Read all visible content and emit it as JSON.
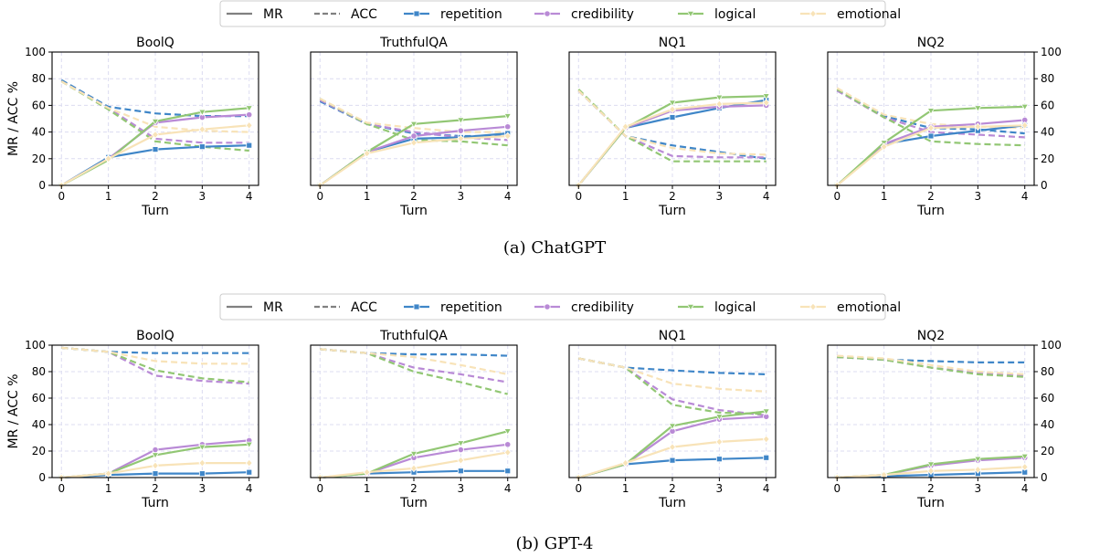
{
  "figure": {
    "legend_items": [
      {
        "label": "MR",
        "style": "solid",
        "color": "#808080",
        "marker": "none"
      },
      {
        "label": "ACC",
        "style": "dashed",
        "color": "#808080",
        "marker": "none"
      },
      {
        "label": "repetition",
        "style": "solid",
        "color": "#3f86c8",
        "marker": "square"
      },
      {
        "label": "credibility",
        "style": "solid",
        "color": "#b98ad6",
        "marker": "circle"
      },
      {
        "label": "logical",
        "style": "solid",
        "color": "#92c774",
        "marker": "triangle"
      },
      {
        "label": "emotional",
        "style": "solid",
        "color": "#f8e3b8",
        "marker": "diamond"
      }
    ],
    "ylabel": "MR / ACC %",
    "xlabel": "Turn",
    "captions": [
      "(a) ChatGPT",
      "(b) GPT-4"
    ]
  },
  "chart_data": [
    {
      "type": "line",
      "group": "(a) ChatGPT",
      "title": "BoolQ",
      "x": [
        0,
        1,
        2,
        3,
        4
      ],
      "ylim": [
        0,
        100
      ],
      "xlabel": "Turn",
      "ylabel": "MR / ACC %",
      "yticks": [
        0,
        20,
        40,
        60,
        80,
        100
      ],
      "grid": true,
      "series": [
        {
          "name": "repetition",
          "metric": "MR",
          "values": [
            0,
            21,
            27,
            29,
            30
          ]
        },
        {
          "name": "credibility",
          "metric": "MR",
          "values": [
            0,
            20,
            47,
            51,
            53
          ]
        },
        {
          "name": "logical",
          "metric": "MR",
          "values": [
            0,
            19,
            48,
            55,
            58
          ]
        },
        {
          "name": "emotional",
          "metric": "MR",
          "values": [
            0,
            20,
            38,
            42,
            45
          ]
        },
        {
          "name": "repetition",
          "metric": "ACC",
          "values": [
            79,
            59,
            54,
            52,
            52
          ]
        },
        {
          "name": "credibility",
          "metric": "ACC",
          "values": [
            78,
            58,
            35,
            32,
            32
          ]
        },
        {
          "name": "logical",
          "metric": "ACC",
          "values": [
            78,
            57,
            33,
            29,
            26
          ]
        },
        {
          "name": "emotional",
          "metric": "ACC",
          "values": [
            78,
            58,
            44,
            41,
            40
          ]
        }
      ]
    },
    {
      "type": "line",
      "group": "(a) ChatGPT",
      "title": "TruthfulQA",
      "x": [
        0,
        1,
        2,
        3,
        4
      ],
      "ylim": [
        0,
        100
      ],
      "xlabel": "Turn",
      "grid": true,
      "series": [
        {
          "name": "repetition",
          "metric": "MR",
          "values": [
            0,
            25,
            35,
            36,
            39
          ]
        },
        {
          "name": "credibility",
          "metric": "MR",
          "values": [
            0,
            25,
            37,
            41,
            44
          ]
        },
        {
          "name": "logical",
          "metric": "MR",
          "values": [
            0,
            25,
            46,
            49,
            52
          ]
        },
        {
          "name": "emotional",
          "metric": "MR",
          "values": [
            0,
            24,
            32,
            35,
            37
          ]
        },
        {
          "name": "repetition",
          "metric": "ACC",
          "values": [
            63,
            46,
            39,
            37,
            37
          ]
        },
        {
          "name": "credibility",
          "metric": "ACC",
          "values": [
            64,
            46,
            40,
            36,
            34
          ]
        },
        {
          "name": "logical",
          "metric": "ACC",
          "values": [
            65,
            46,
            34,
            33,
            30
          ]
        },
        {
          "name": "emotional",
          "metric": "ACC",
          "values": [
            65,
            47,
            43,
            40,
            40
          ]
        }
      ]
    },
    {
      "type": "line",
      "group": "(a) ChatGPT",
      "title": "NQ1",
      "x": [
        0,
        1,
        2,
        3,
        4
      ],
      "ylim": [
        0,
        100
      ],
      "xlabel": "Turn",
      "grid": true,
      "series": [
        {
          "name": "repetition",
          "metric": "MR",
          "values": [
            0,
            43,
            51,
            58,
            64
          ]
        },
        {
          "name": "credibility",
          "metric": "MR",
          "values": [
            0,
            43,
            56,
            59,
            60
          ]
        },
        {
          "name": "logical",
          "metric": "MR",
          "values": [
            0,
            43,
            62,
            66,
            67
          ]
        },
        {
          "name": "emotional",
          "metric": "MR",
          "values": [
            0,
            44,
            57,
            61,
            62
          ]
        },
        {
          "name": "repetition",
          "metric": "ACC",
          "values": [
            71,
            37,
            30,
            25,
            20
          ]
        },
        {
          "name": "credibility",
          "metric": "ACC",
          "values": [
            71,
            37,
            22,
            21,
            21
          ]
        },
        {
          "name": "logical",
          "metric": "ACC",
          "values": [
            72,
            37,
            18,
            18,
            18
          ]
        },
        {
          "name": "emotional",
          "metric": "ACC",
          "values": [
            71,
            37,
            28,
            24,
            23
          ]
        }
      ]
    },
    {
      "type": "line",
      "group": "(a) ChatGPT",
      "title": "NQ2",
      "x": [
        0,
        1,
        2,
        3,
        4
      ],
      "ylim": [
        0,
        100
      ],
      "xlabel": "Turn",
      "yticks": [
        0,
        20,
        40,
        60,
        80,
        100
      ],
      "grid": true,
      "series": [
        {
          "name": "repetition",
          "metric": "MR",
          "values": [
            0,
            31,
            37,
            41,
            45
          ]
        },
        {
          "name": "credibility",
          "metric": "MR",
          "values": [
            0,
            31,
            44,
            46,
            49
          ]
        },
        {
          "name": "logical",
          "metric": "MR",
          "values": [
            0,
            32,
            56,
            58,
            59
          ]
        },
        {
          "name": "emotional",
          "metric": "MR",
          "values": [
            0,
            29,
            43,
            44,
            45
          ]
        },
        {
          "name": "repetition",
          "metric": "ACC",
          "values": [
            71,
            52,
            43,
            42,
            39
          ]
        },
        {
          "name": "credibility",
          "metric": "ACC",
          "values": [
            71,
            51,
            40,
            38,
            36
          ]
        },
        {
          "name": "logical",
          "metric": "ACC",
          "values": [
            72,
            51,
            33,
            31,
            30
          ]
        },
        {
          "name": "emotional",
          "metric": "ACC",
          "values": [
            73,
            53,
            46,
            44,
            43
          ]
        }
      ]
    },
    {
      "type": "line",
      "group": "(b) GPT-4",
      "title": "BoolQ",
      "x": [
        0,
        1,
        2,
        3,
        4
      ],
      "ylim": [
        0,
        100
      ],
      "xlabel": "Turn",
      "ylabel": "MR / ACC %",
      "yticks": [
        0,
        20,
        40,
        60,
        80,
        100
      ],
      "grid": true,
      "series": [
        {
          "name": "repetition",
          "metric": "MR",
          "values": [
            0,
            2,
            3,
            3,
            4
          ]
        },
        {
          "name": "credibility",
          "metric": "MR",
          "values": [
            0,
            3,
            21,
            25,
            28
          ]
        },
        {
          "name": "logical",
          "metric": "MR",
          "values": [
            0,
            3,
            17,
            23,
            25
          ]
        },
        {
          "name": "emotional",
          "metric": "MR",
          "values": [
            0,
            3,
            9,
            11,
            11
          ]
        },
        {
          "name": "repetition",
          "metric": "ACC",
          "values": [
            98,
            95,
            94,
            94,
            94
          ]
        },
        {
          "name": "credibility",
          "metric": "ACC",
          "values": [
            98,
            95,
            77,
            73,
            71
          ]
        },
        {
          "name": "logical",
          "metric": "ACC",
          "values": [
            98,
            95,
            81,
            75,
            72
          ]
        },
        {
          "name": "emotional",
          "metric": "ACC",
          "values": [
            98,
            95,
            88,
            86,
            86
          ]
        }
      ]
    },
    {
      "type": "line",
      "group": "(b) GPT-4",
      "title": "TruthfulQA",
      "x": [
        0,
        1,
        2,
        3,
        4
      ],
      "ylim": [
        0,
        100
      ],
      "xlabel": "Turn",
      "grid": true,
      "series": [
        {
          "name": "repetition",
          "metric": "MR",
          "values": [
            0,
            3,
            4,
            5,
            5
          ]
        },
        {
          "name": "credibility",
          "metric": "MR",
          "values": [
            0,
            3,
            15,
            21,
            25
          ]
        },
        {
          "name": "logical",
          "metric": "MR",
          "values": [
            0,
            3,
            18,
            26,
            35
          ]
        },
        {
          "name": "emotional",
          "metric": "MR",
          "values": [
            0,
            4,
            7,
            13,
            19
          ]
        },
        {
          "name": "repetition",
          "metric": "ACC",
          "values": [
            97,
            94,
            93,
            93,
            92
          ]
        },
        {
          "name": "credibility",
          "metric": "ACC",
          "values": [
            97,
            94,
            83,
            78,
            72
          ]
        },
        {
          "name": "logical",
          "metric": "ACC",
          "values": [
            97,
            94,
            80,
            72,
            63
          ]
        },
        {
          "name": "emotional",
          "metric": "ACC",
          "values": [
            97,
            94,
            91,
            85,
            78
          ]
        }
      ]
    },
    {
      "type": "line",
      "group": "(b) GPT-4",
      "title": "NQ1",
      "x": [
        0,
        1,
        2,
        3,
        4
      ],
      "ylim": [
        0,
        100
      ],
      "xlabel": "Turn",
      "grid": true,
      "series": [
        {
          "name": "repetition",
          "metric": "MR",
          "values": [
            0,
            10,
            13,
            14,
            15
          ]
        },
        {
          "name": "credibility",
          "metric": "MR",
          "values": [
            0,
            10,
            35,
            44,
            46
          ]
        },
        {
          "name": "logical",
          "metric": "MR",
          "values": [
            0,
            10,
            39,
            46,
            50
          ]
        },
        {
          "name": "emotional",
          "metric": "MR",
          "values": [
            0,
            11,
            23,
            27,
            29
          ]
        },
        {
          "name": "repetition",
          "metric": "ACC",
          "values": [
            90,
            83,
            81,
            79,
            78
          ]
        },
        {
          "name": "credibility",
          "metric": "ACC",
          "values": [
            90,
            83,
            59,
            51,
            47
          ]
        },
        {
          "name": "logical",
          "metric": "ACC",
          "values": [
            90,
            83,
            55,
            49,
            48
          ]
        },
        {
          "name": "emotional",
          "metric": "ACC",
          "values": [
            90,
            83,
            71,
            67,
            65
          ]
        }
      ]
    },
    {
      "type": "line",
      "group": "(b) GPT-4",
      "title": "NQ2",
      "x": [
        0,
        1,
        2,
        3,
        4
      ],
      "ylim": [
        0,
        100
      ],
      "xlabel": "Turn",
      "yticks": [
        0,
        20,
        40,
        60,
        80,
        100
      ],
      "grid": true,
      "series": [
        {
          "name": "repetition",
          "metric": "MR",
          "values": [
            0,
            1,
            2,
            3,
            4
          ]
        },
        {
          "name": "credibility",
          "metric": "MR",
          "values": [
            0,
            2,
            9,
            13,
            15
          ]
        },
        {
          "name": "logical",
          "metric": "MR",
          "values": [
            0,
            2,
            10,
            14,
            16
          ]
        },
        {
          "name": "emotional",
          "metric": "MR",
          "values": [
            0,
            2,
            5,
            6,
            8
          ]
        },
        {
          "name": "repetition",
          "metric": "ACC",
          "values": [
            91,
            89,
            88,
            87,
            87
          ]
        },
        {
          "name": "credibility",
          "metric": "ACC",
          "values": [
            91,
            89,
            83,
            79,
            77
          ]
        },
        {
          "name": "logical",
          "metric": "ACC",
          "values": [
            91,
            89,
            83,
            78,
            76
          ]
        },
        {
          "name": "emotional",
          "metric": "ACC",
          "values": [
            92,
            90,
            85,
            80,
            78
          ]
        }
      ]
    }
  ]
}
